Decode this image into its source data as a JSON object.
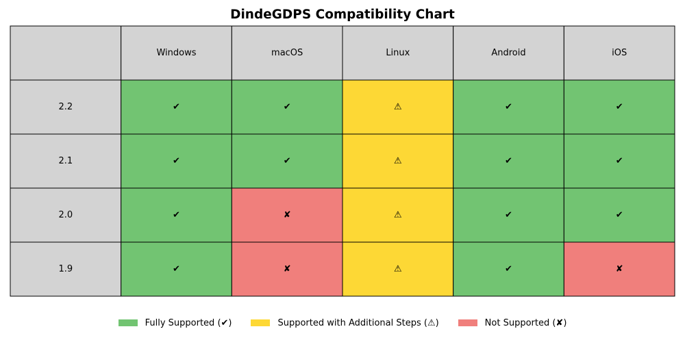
{
  "chart_data": {
    "type": "table",
    "title": "DindeGDPS Compatibility Chart",
    "columns": [
      "",
      "Windows",
      "macOS",
      "Linux",
      "Android",
      "iOS"
    ],
    "rows": [
      {
        "label": "2.2",
        "values": [
          "full",
          "full",
          "steps",
          "full",
          "full"
        ]
      },
      {
        "label": "2.1",
        "values": [
          "full",
          "full",
          "steps",
          "full",
          "full"
        ]
      },
      {
        "label": "2.0",
        "values": [
          "full",
          "none",
          "steps",
          "full",
          "full"
        ]
      },
      {
        "label": "1.9",
        "values": [
          "full",
          "none",
          "steps",
          "full",
          "none"
        ]
      }
    ],
    "statuses": {
      "full": {
        "symbol": "✔",
        "color": "#72c472",
        "legend": "Fully Supported (✔)"
      },
      "steps": {
        "symbol": "⚠",
        "color": "#fdd835",
        "legend": "Supported with Additional Steps (⚠)"
      },
      "none": {
        "symbol": "✘",
        "color": "#f07f7c",
        "legend": "Not Supported (✘)"
      }
    },
    "header_color": "#d3d3d3",
    "legend_order": [
      "full",
      "steps",
      "none"
    ],
    "legend_placement": "bottom-center"
  }
}
